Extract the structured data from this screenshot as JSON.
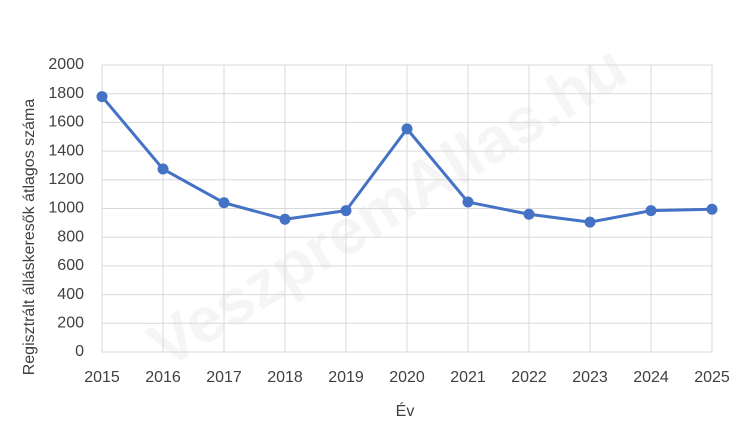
{
  "chart_data": {
    "type": "line",
    "x_label": "Év",
    "y_label": "Regisztrált álláskeresők átlagos száma",
    "watermark": "VeszpremAllas.hu",
    "x": [
      2015,
      2016,
      2017,
      2018,
      2019,
      2020,
      2021,
      2022,
      2023,
      2024,
      2025
    ],
    "series": [
      {
        "name": "Regisztrált álláskeresők átlagos száma",
        "color": "#4472c4",
        "values": [
          1780,
          1275,
          1040,
          925,
          985,
          1555,
          1045,
          960,
          905,
          985,
          995
        ]
      }
    ],
    "xlim": [
      2015,
      2025
    ],
    "xticks": [
      2015,
      2016,
      2017,
      2018,
      2019,
      2020,
      2021,
      2022,
      2023,
      2024,
      2025
    ],
    "ylim": [
      0,
      2000
    ],
    "yticks": [
      0,
      200,
      400,
      600,
      800,
      1000,
      1200,
      1400,
      1600,
      1800,
      2000
    ],
    "grid": true
  }
}
